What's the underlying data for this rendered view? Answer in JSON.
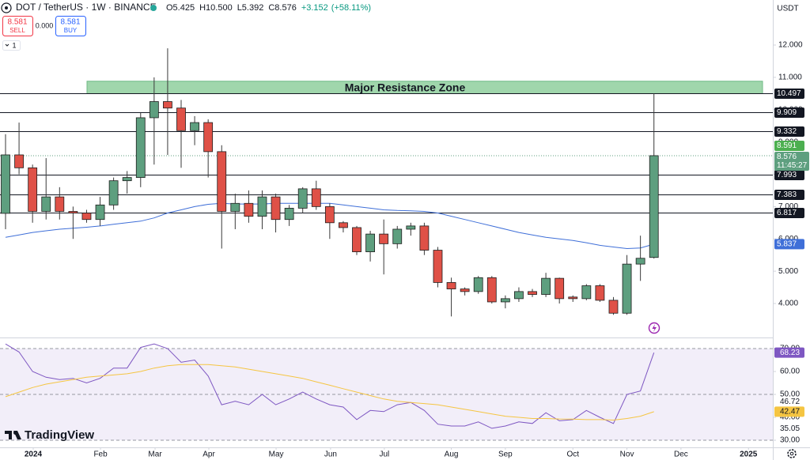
{
  "header": {
    "symbol": "DOT / TetherUS · 1W · BINANCE",
    "last_bar_labels": [
      "O5.425",
      "H10.500",
      "L5.392",
      "C8.576"
    ],
    "change": {
      "value": 3.152,
      "label": "+3.152"
    },
    "change_pct": {
      "value": 58.11,
      "label": "(+58.11%)"
    }
  },
  "trade": {
    "sell_price": 8.581,
    "sell_label": "SELL",
    "spread": {
      "value": 0,
      "label": "0.000"
    },
    "buy_price": 8.581,
    "buy_label": "BUY",
    "quantity": 1
  },
  "branding": "TradingView",
  "chart_data": {
    "type": "candlestick",
    "currency": "USDT",
    "categories": [
      null,
      null,
      null,
      null,
      null,
      null,
      null,
      null,
      null,
      null,
      null,
      null,
      null,
      null,
      null,
      null,
      null,
      null,
      null,
      null,
      null,
      null,
      null,
      null,
      null,
      null,
      null,
      null,
      null,
      null,
      null,
      null,
      null,
      null,
      null,
      null,
      null,
      null,
      null,
      null,
      null,
      null,
      null,
      null,
      null,
      null,
      null,
      null,
      null
    ],
    "open": [
      6.79,
      8.6,
      8.2,
      6.85,
      7.3,
      6.85,
      6.8,
      6.6,
      7.05,
      7.8,
      7.9,
      9.75,
      10.25,
      10.05,
      9.35,
      9.6,
      8.7,
      6.85,
      7.1,
      6.7,
      7.3,
      6.6,
      6.95,
      7.55,
      7.0,
      6.5,
      6.35,
      5.6,
      6.15,
      5.85,
      6.3,
      6.4,
      5.65,
      4.65,
      4.45,
      4.37,
      4.8,
      4.05,
      4.15,
      4.37,
      4.28,
      4.78,
      4.2,
      4.15,
      4.55,
      4.1,
      3.7,
      5.22,
      5.425
    ],
    "high": [
      9.24,
      9.6,
      8.3,
      8.5,
      7.6,
      7.0,
      6.9,
      7.3,
      7.9,
      8.1,
      9.9,
      11.0,
      11.9,
      10.3,
      9.8,
      9.7,
      8.9,
      7.4,
      7.5,
      7.5,
      7.4,
      7.05,
      7.6,
      7.8,
      7.1,
      6.55,
      6.4,
      6.25,
      6.6,
      6.4,
      6.5,
      6.5,
      5.75,
      4.8,
      4.5,
      4.85,
      4.85,
      4.25,
      4.5,
      4.45,
      4.95,
      4.8,
      4.25,
      4.6,
      4.6,
      4.2,
      5.5,
      6.1,
      10.5
    ],
    "low": [
      6.3,
      8.0,
      6.5,
      6.6,
      6.6,
      6.0,
      6.5,
      6.4,
      6.9,
      7.4,
      7.6,
      8.3,
      8.6,
      8.2,
      8.9,
      7.9,
      5.7,
      6.3,
      6.5,
      6.3,
      6.2,
      6.4,
      6.8,
      6.9,
      6.0,
      6.2,
      5.5,
      5.3,
      4.9,
      5.7,
      6.1,
      5.5,
      4.5,
      3.6,
      4.25,
      4.3,
      4.0,
      3.85,
      4.05,
      4.2,
      4.2,
      4.0,
      4.05,
      4.1,
      4.05,
      3.65,
      3.65,
      4.7,
      5.392
    ],
    "close": [
      8.6,
      8.2,
      6.85,
      7.3,
      6.85,
      6.8,
      6.6,
      7.05,
      7.8,
      7.9,
      9.75,
      10.25,
      10.05,
      9.35,
      9.6,
      8.7,
      6.85,
      7.1,
      6.7,
      7.3,
      6.6,
      6.95,
      7.55,
      7.0,
      6.5,
      6.35,
      5.6,
      6.15,
      5.85,
      6.3,
      6.4,
      5.65,
      4.65,
      4.45,
      4.37,
      4.8,
      4.05,
      4.15,
      4.37,
      4.28,
      4.78,
      4.15,
      4.15,
      4.55,
      4.1,
      3.7,
      5.22,
      5.4,
      8.576
    ],
    "up_color": "#5e9f7f",
    "down_color": "#df5147",
    "ylim": [
      2.948,
      13.394
    ],
    "yticks": [
      {
        "value": 4,
        "label": "4.000"
      },
      {
        "value": 5,
        "label": "5.000"
      },
      {
        "value": 6,
        "label": "6.000"
      },
      {
        "value": 7,
        "label": "7.000"
      },
      {
        "value": 8,
        "label": "8.000"
      },
      {
        "value": 9,
        "label": "9.000"
      },
      {
        "value": 10,
        "label": "10.000"
      },
      {
        "value": 11,
        "label": "11.000"
      },
      {
        "value": 12,
        "label": "12.000"
      }
    ],
    "xlim": [
      -0.41,
      56.8
    ],
    "xticks": [
      {
        "value": 2.05,
        "label": "2024"
      },
      {
        "value": 7.03,
        "label": "Feb"
      },
      {
        "value": 11.07,
        "label": "Mar"
      },
      {
        "value": 15.05,
        "label": "Apr"
      },
      {
        "value": 20.03,
        "label": "May"
      },
      {
        "value": 24.06,
        "label": "Jun"
      },
      {
        "value": 28.04,
        "label": "Jul"
      },
      {
        "value": 33.0,
        "label": "Aug"
      },
      {
        "value": 37.0,
        "label": "Sep"
      },
      {
        "value": 42.0,
        "label": "Oct"
      },
      {
        "value": 46.0,
        "label": "Nov"
      },
      {
        "value": 50.0,
        "label": "Dec"
      },
      {
        "value": 55.0,
        "label": "2025"
      }
    ],
    "levels": [
      10.497,
      9.909,
      9.332,
      7.993,
      7.383,
      6.817
    ],
    "zone": {
      "label": "Major Resistance Zone",
      "low": 10.497,
      "high": 10.88,
      "color": "#8fcf9e"
    },
    "bid": 8.591,
    "countdown": "11:45:27",
    "ma": {
      "color": "#3f6fd8",
      "values": [
        6.05,
        6.12,
        6.2,
        6.25,
        6.3,
        6.33,
        6.36,
        6.4,
        6.45,
        6.5,
        6.55,
        6.65,
        6.8,
        6.9,
        7.0,
        7.07,
        7.1,
        7.08,
        7.08,
        7.08,
        7.1,
        7.1,
        7.1,
        7.1,
        7.1,
        7.05,
        7.0,
        6.95,
        6.9,
        6.88,
        6.87,
        6.85,
        6.8,
        6.7,
        6.6,
        6.5,
        6.4,
        6.3,
        6.2,
        6.12,
        6.05,
        6.0,
        5.95,
        5.88,
        5.8,
        5.75,
        5.7,
        5.72,
        5.837
      ]
    },
    "rsi": {
      "ylim": [
        26.9,
        74.5
      ],
      "yticks": [
        {
          "value": 30,
          "label": "30.00"
        },
        {
          "value": 40,
          "label": "40.00"
        },
        {
          "value": 50,
          "label": "50.00"
        },
        {
          "value": 60,
          "label": "60.00"
        },
        {
          "value": 70,
          "label": "70.00"
        }
      ],
      "levels": [
        70,
        50,
        30
      ],
      "extra_labels": [
        46.72,
        35.05
      ],
      "series": [
        {
          "color": "#7e57c2",
          "values": [
            72,
            68.5,
            60,
            57.5,
            56.5,
            57,
            55,
            57,
            61.5,
            61.5,
            70.5,
            72,
            70,
            64,
            65,
            58,
            45.5,
            47,
            45.5,
            50,
            45.5,
            48,
            51,
            48,
            45.5,
            44.5,
            39,
            43,
            42.5,
            45.5,
            46.5,
            43,
            37,
            36.2,
            36.2,
            38,
            35.2,
            36.2,
            38,
            37.3,
            42,
            38.5,
            39,
            43,
            40,
            37.3,
            50,
            51.5,
            68.23
          ]
        },
        {
          "color": "#f5c542",
          "values": [
            49,
            51,
            53,
            54.5,
            55.5,
            56.5,
            57.5,
            58,
            58.5,
            59,
            60,
            61.5,
            62.5,
            63,
            63,
            63,
            62.5,
            62,
            61,
            60,
            59,
            58,
            57,
            55.5,
            54,
            52.5,
            51,
            49.5,
            48,
            47,
            46.5,
            46,
            45.5,
            44.5,
            43.5,
            42.5,
            41.5,
            40.5,
            40,
            39.5,
            39.5,
            39.3,
            39.2,
            39,
            39,
            38.8,
            39.5,
            40.5,
            42.47
          ]
        }
      ]
    }
  }
}
